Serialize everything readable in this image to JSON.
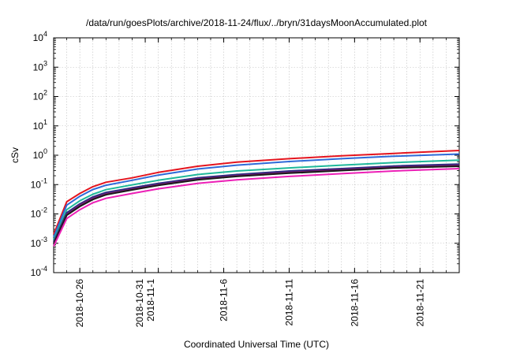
{
  "chart_data": {
    "type": "line",
    "title": "/data/run/goesPlots/archive/2018-11-24/flux/../bryn/31daysMoonAccumulated.plot",
    "xlabel": "Coordinated Universal Time (UTC)",
    "ylabel": "cSv",
    "yscale": "log",
    "ylim": [
      0.0001,
      10000
    ],
    "xlim": [
      "2018-10-24",
      "2018-11-24"
    ],
    "grid": true,
    "y_ticks": [
      {
        "value": 0.0001,
        "base": "10",
        "exp": "-4"
      },
      {
        "value": 0.001,
        "base": "10",
        "exp": "-3"
      },
      {
        "value": 0.01,
        "base": "10",
        "exp": "-2"
      },
      {
        "value": 0.1,
        "base": "10",
        "exp": "-1"
      },
      {
        "value": 1,
        "base": "10",
        "exp": "0"
      },
      {
        "value": 10,
        "base": "10",
        "exp": "1"
      },
      {
        "value": 100,
        "base": "10",
        "exp": "2"
      },
      {
        "value": 1000,
        "base": "10",
        "exp": "3"
      },
      {
        "value": 10000,
        "base": "10",
        "exp": "4"
      }
    ],
    "x_ticks": [
      {
        "date": "2018-10-26",
        "label": "2018-10-26"
      },
      {
        "date": "2018-10-31",
        "label": "2018-10-31"
      },
      {
        "date": "2018-11-01",
        "label": "2018-11-1"
      },
      {
        "date": "2018-11-06",
        "label": "2018-11-6"
      },
      {
        "date": "2018-11-11",
        "label": "2018-11-11"
      },
      {
        "date": "2018-11-16",
        "label": "2018-11-16"
      },
      {
        "date": "2018-11-21",
        "label": "2018-11-21"
      }
    ],
    "x": [
      "2018-10-24",
      "2018-10-25",
      "2018-10-26",
      "2018-10-27",
      "2018-10-28",
      "2018-10-30",
      "2018-11-01",
      "2018-11-04",
      "2018-11-07",
      "2018-11-11",
      "2018-11-15",
      "2018-11-19",
      "2018-11-24"
    ],
    "series": [
      {
        "color": "#e4141e",
        "values": [
          0.002,
          0.026,
          0.05,
          0.085,
          0.12,
          0.17,
          0.26,
          0.42,
          0.58,
          0.76,
          0.95,
          1.15,
          1.45
        ]
      },
      {
        "color": "#2e6ad8",
        "values": [
          0.0016,
          0.02,
          0.04,
          0.068,
          0.095,
          0.14,
          0.21,
          0.34,
          0.46,
          0.61,
          0.76,
          0.92,
          1.1
        ]
      },
      {
        "color": "#1fb89a",
        "values": [
          0.0013,
          0.014,
          0.028,
          0.047,
          0.067,
          0.098,
          0.14,
          0.22,
          0.29,
          0.37,
          0.46,
          0.56,
          0.68
        ]
      },
      {
        "color": "#2a2a80",
        "values": [
          0.0011,
          0.011,
          0.022,
          0.038,
          0.054,
          0.078,
          0.11,
          0.17,
          0.22,
          0.29,
          0.35,
          0.43,
          0.5
        ]
      },
      {
        "color": "#7a1a70",
        "values": [
          0.001,
          0.0095,
          0.02,
          0.034,
          0.048,
          0.07,
          0.1,
          0.155,
          0.2,
          0.26,
          0.32,
          0.39,
          0.45
        ]
      },
      {
        "color": "#1a1a1a",
        "values": [
          0.00095,
          0.009,
          0.018,
          0.031,
          0.045,
          0.066,
          0.094,
          0.145,
          0.19,
          0.245,
          0.3,
          0.37,
          0.42
        ]
      },
      {
        "color": "#ec1fb6",
        "values": [
          0.0008,
          0.007,
          0.014,
          0.024,
          0.034,
          0.05,
          0.072,
          0.11,
          0.145,
          0.19,
          0.235,
          0.29,
          0.35
        ]
      }
    ]
  }
}
